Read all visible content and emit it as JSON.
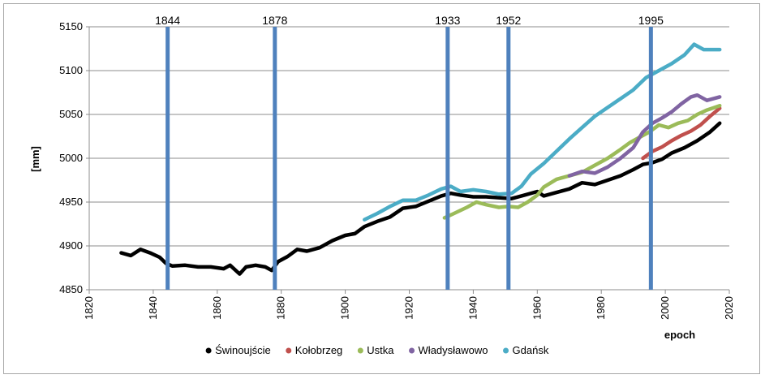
{
  "chart_data": {
    "type": "line",
    "title": "",
    "xlabel": "epoch",
    "ylabel": "[mm]",
    "xlim": [
      1820,
      2020
    ],
    "ylim": [
      4850,
      5150
    ],
    "x_ticks": [
      "1820",
      "1840",
      "1860",
      "1880",
      "1900",
      "1920",
      "1940",
      "1960",
      "1980",
      "2000",
      "2020"
    ],
    "y_ticks": [
      "4850",
      "4900",
      "4950",
      "5000",
      "5050",
      "5100",
      "5150"
    ],
    "grid": "horizontal",
    "legend_position": "bottom",
    "vertical_lines": [
      {
        "x": 1844.5,
        "label": "1844"
      },
      {
        "x": 1878,
        "label": "1878"
      },
      {
        "x": 1932,
        "label": "1933"
      },
      {
        "x": 1951,
        "label": "1952"
      },
      {
        "x": 1995.5,
        "label": "1995"
      }
    ],
    "vertical_line_color": "#4f81bd",
    "series": [
      {
        "name": "Świnoujście",
        "color": "#000000",
        "points": [
          [
            1830,
            4892
          ],
          [
            1833,
            4889
          ],
          [
            1836,
            4896
          ],
          [
            1839,
            4892
          ],
          [
            1842,
            4887
          ],
          [
            1844,
            4880
          ],
          [
            1846,
            4877
          ],
          [
            1850,
            4878
          ],
          [
            1854,
            4876
          ],
          [
            1858,
            4876
          ],
          [
            1862,
            4874
          ],
          [
            1864,
            4878
          ],
          [
            1867,
            4868
          ],
          [
            1869,
            4876
          ],
          [
            1872,
            4878
          ],
          [
            1875,
            4876
          ],
          [
            1877,
            4872
          ],
          [
            1879,
            4882
          ],
          [
            1882,
            4888
          ],
          [
            1885,
            4896
          ],
          [
            1888,
            4894
          ],
          [
            1892,
            4898
          ],
          [
            1896,
            4906
          ],
          [
            1900,
            4912
          ],
          [
            1903,
            4914
          ],
          [
            1906,
            4922
          ],
          [
            1910,
            4928
          ],
          [
            1914,
            4933
          ],
          [
            1918,
            4943
          ],
          [
            1922,
            4945
          ],
          [
            1926,
            4951
          ],
          [
            1930,
            4957
          ],
          [
            1933,
            4960
          ],
          [
            1936,
            4958
          ],
          [
            1940,
            4956
          ],
          [
            1944,
            4956
          ],
          [
            1948,
            4955
          ],
          [
            1952,
            4954
          ],
          [
            1956,
            4958
          ],
          [
            1960,
            4962
          ],
          [
            1962,
            4957
          ],
          [
            1965,
            4960
          ],
          [
            1970,
            4965
          ],
          [
            1974,
            4972
          ],
          [
            1978,
            4970
          ],
          [
            1982,
            4975
          ],
          [
            1986,
            4980
          ],
          [
            1990,
            4987
          ],
          [
            1993,
            4993
          ],
          [
            1996,
            4995
          ],
          [
            1999,
            4999
          ],
          [
            2002,
            5006
          ],
          [
            2006,
            5012
          ],
          [
            2010,
            5020
          ],
          [
            2014,
            5030
          ],
          [
            2017,
            5040
          ]
        ]
      },
      {
        "name": "Kołobrzeg",
        "color": "#c0504d",
        "points": [
          [
            1993,
            5000
          ],
          [
            1996,
            5008
          ],
          [
            1999,
            5013
          ],
          [
            2002,
            5020
          ],
          [
            2005,
            5026
          ],
          [
            2008,
            5031
          ],
          [
            2011,
            5038
          ],
          [
            2014,
            5048
          ],
          [
            2017,
            5057
          ]
        ]
      },
      {
        "name": "Ustka",
        "color": "#9bbb59",
        "points": [
          [
            1931,
            4932
          ],
          [
            1934,
            4937
          ],
          [
            1938,
            4944
          ],
          [
            1941,
            4950
          ],
          [
            1944,
            4947
          ],
          [
            1948,
            4944
          ],
          [
            1951,
            4945
          ],
          [
            1954,
            4944
          ],
          [
            1957,
            4950
          ],
          [
            1960,
            4958
          ],
          [
            1962,
            4967
          ],
          [
            1966,
            4976
          ],
          [
            1970,
            4980
          ],
          [
            1974,
            4984
          ],
          [
            1978,
            4992
          ],
          [
            1982,
            5000
          ],
          [
            1986,
            5010
          ],
          [
            1989,
            5018
          ],
          [
            1992,
            5024
          ],
          [
            1995,
            5030
          ],
          [
            1998,
            5038
          ],
          [
            2001,
            5035
          ],
          [
            2004,
            5040
          ],
          [
            2007,
            5043
          ],
          [
            2010,
            5050
          ],
          [
            2013,
            5055
          ],
          [
            2017,
            5060
          ]
        ]
      },
      {
        "name": "Władysławowo",
        "color": "#8064a2",
        "points": [
          [
            1970,
            4980
          ],
          [
            1974,
            4985
          ],
          [
            1978,
            4983
          ],
          [
            1982,
            4990
          ],
          [
            1986,
            5000
          ],
          [
            1990,
            5012
          ],
          [
            1993,
            5030
          ],
          [
            1996,
            5040
          ],
          [
            1999,
            5046
          ],
          [
            2002,
            5053
          ],
          [
            2005,
            5062
          ],
          [
            2008,
            5070
          ],
          [
            2010,
            5072
          ],
          [
            2013,
            5066
          ],
          [
            2017,
            5070
          ]
        ]
      },
      {
        "name": "Gdańsk",
        "color": "#4bacc6",
        "points": [
          [
            1906,
            4930
          ],
          [
            1910,
            4937
          ],
          [
            1914,
            4945
          ],
          [
            1918,
            4952
          ],
          [
            1922,
            4952
          ],
          [
            1926,
            4958
          ],
          [
            1930,
            4965
          ],
          [
            1933,
            4968
          ],
          [
            1936,
            4962
          ],
          [
            1940,
            4964
          ],
          [
            1944,
            4962
          ],
          [
            1948,
            4959
          ],
          [
            1952,
            4960
          ],
          [
            1955,
            4968
          ],
          [
            1958,
            4982
          ],
          [
            1962,
            4994
          ],
          [
            1966,
            5008
          ],
          [
            1970,
            5022
          ],
          [
            1974,
            5035
          ],
          [
            1978,
            5048
          ],
          [
            1982,
            5058
          ],
          [
            1986,
            5068
          ],
          [
            1990,
            5078
          ],
          [
            1994,
            5092
          ],
          [
            1998,
            5100
          ],
          [
            2002,
            5108
          ],
          [
            2006,
            5118
          ],
          [
            2009,
            5130
          ],
          [
            2012,
            5124
          ],
          [
            2017,
            5124
          ]
        ]
      }
    ]
  }
}
